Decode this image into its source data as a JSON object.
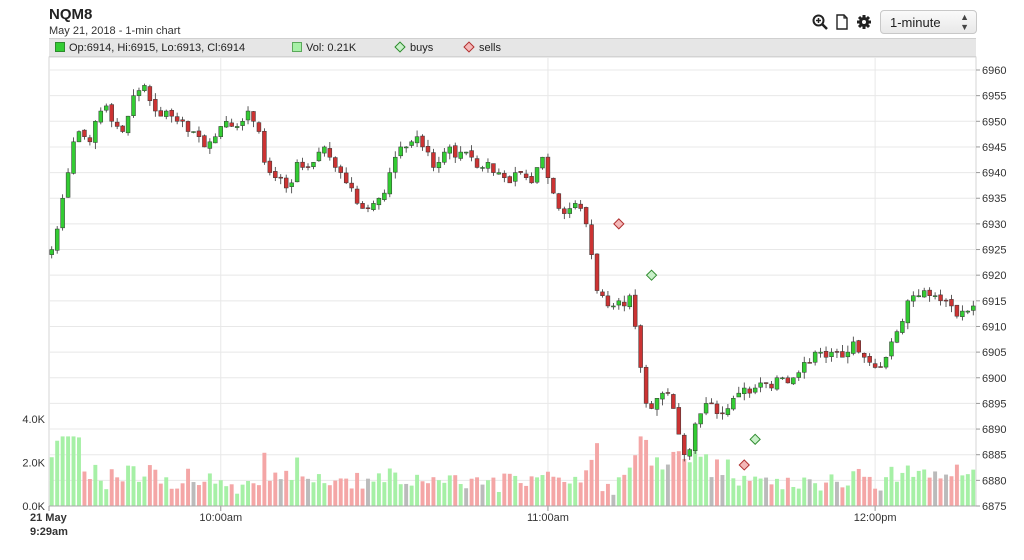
{
  "header": {
    "title": "NQM8",
    "subtitle": "May 21, 2018 - 1-min chart",
    "interval": "1-minute",
    "icons": [
      "zoom-icon",
      "document-icon",
      "gear-icon"
    ]
  },
  "legend": {
    "ohlc": "Op:6914, Hi:6915, Lo:6913, Cl:6914",
    "volume": "Vol: 0.21K",
    "buys": "buys",
    "sells": "sells"
  },
  "colors": {
    "up": "#33cc33",
    "down": "#cc3333",
    "vol_up": "#a6f0a6",
    "vol_down": "#f4a6a6",
    "vol_flat": "#bbbbbb",
    "buy_marker": "#c8f0c8",
    "sell_marker": "#f4b8b8"
  },
  "chart_data": {
    "type": "candlestick",
    "price_axis": {
      "position": "right",
      "min": 6875,
      "max": 6960,
      "step": 5,
      "ticks": [
        "6960",
        "6955",
        "6950",
        "6945",
        "6940",
        "6935",
        "6930",
        "6925",
        "6920",
        "6915",
        "6910",
        "6905",
        "6900",
        "6895",
        "6890",
        "6885",
        "6880",
        "6875"
      ]
    },
    "volume_axis": {
      "position": "left",
      "min": 0,
      "max": 4000,
      "ticks": [
        "4.0K",
        "2.0K",
        "0.0K"
      ]
    },
    "time_axis": {
      "start": "09:29",
      "end": "12:28",
      "tick_labels": [
        {
          "minute": 0,
          "line1": "21 May",
          "line2": "9:29am"
        },
        {
          "minute": 31,
          "line1": "10:00am",
          "line2": ""
        },
        {
          "minute": 91,
          "line1": "11:00am",
          "line2": ""
        },
        {
          "minute": 151,
          "line1": "12:00pm",
          "line2": ""
        }
      ]
    },
    "grid": true,
    "candles_close": [
      6925,
      6929,
      6935,
      6940,
      6946,
      6948,
      6947,
      6946,
      6950,
      6952,
      6953,
      6950,
      6949,
      6948,
      6951,
      6955,
      6956,
      6957,
      6954,
      6952,
      6951,
      6952,
      6951,
      6950,
      6950,
      6948,
      6948,
      6947,
      6945,
      6946,
      6947,
      6949,
      6950,
      6949,
      6949,
      6950,
      6952,
      6950,
      6948,
      6942,
      6940,
      6939,
      6939,
      6937,
      6938,
      6942,
      6941,
      6941,
      6942,
      6944,
      6945,
      6943,
      6941,
      6940,
      6938,
      6937,
      6934,
      6933,
      6933,
      6934,
      6935,
      6936,
      6940,
      6943,
      6945,
      6945,
      6946,
      6947,
      6945,
      6944,
      6941,
      6942,
      6944,
      6945,
      6943,
      6944,
      6944,
      6943,
      6941,
      6941,
      6942,
      6940,
      6940,
      6939,
      6938,
      6940,
      6940,
      6939,
      6938,
      6941,
      6943,
      6939,
      6936,
      6933,
      6932,
      6933,
      6934,
      6933,
      6930,
      6924,
      6917,
      6916,
      6914,
      6914,
      6915,
      6914,
      6916,
      6910,
      6902,
      6895,
      6894,
      6896,
      6897,
      6897,
      6894,
      6889,
      6885,
      6886,
      6891,
      6893,
      6895,
      6895,
      6893,
      6893,
      6894,
      6896,
      6897,
      6898,
      6897,
      6898,
      6899,
      6899,
      6898,
      6900,
      6900,
      6899,
      6900,
      6901,
      6903,
      6903,
      6905,
      6905,
      6904,
      6905,
      6905,
      6904,
      6905,
      6907,
      6905,
      6904,
      6903,
      6902,
      6902,
      6904,
      6907,
      6909,
      6911,
      6915,
      6916,
      6916,
      6917,
      6916,
      6916,
      6915,
      6915,
      6914,
      6912,
      6913,
      6913,
      6914
    ],
    "buy_markers": [
      {
        "minute": 110,
        "price": 6920
      },
      {
        "minute": 129,
        "price": 6888
      }
    ],
    "sell_markers": [
      {
        "minute": 104,
        "price": 6930
      },
      {
        "minute": 127,
        "price": 6883
      }
    ]
  }
}
